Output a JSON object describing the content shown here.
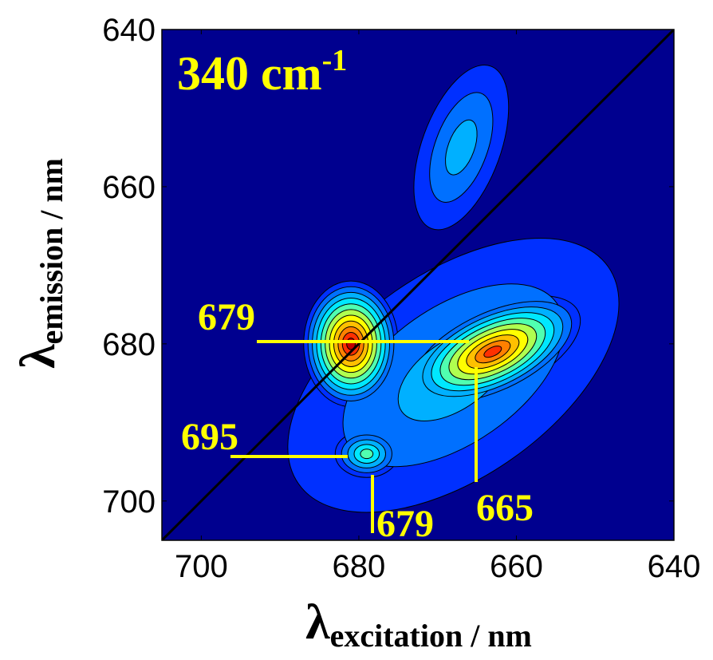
{
  "chart_data": {
    "type": "contour",
    "title": {
      "text": "340 cm",
      "sup": "-1"
    },
    "x_label": {
      "main": "λ",
      "sub": "excitation / nm"
    },
    "y_label": {
      "main": "λ",
      "sub": "emission / nm"
    },
    "xlim": [
      705,
      640
    ],
    "ylim": [
      640,
      705
    ],
    "xticks": [
      700,
      680,
      660,
      640
    ],
    "yticks": [
      640,
      660,
      680,
      700
    ],
    "background": "#00008f",
    "level_colors": [
      "#0030ff",
      "#0070ff",
      "#00b0ff",
      "#00e8ff",
      "#50ffb0",
      "#b0ff50",
      "#ffff00",
      "#ffc000",
      "#ff8000",
      "#ff3000",
      "#c00000"
    ],
    "peaks": [
      {
        "x": 668,
        "y": 684,
        "levels": 3,
        "sx": 24,
        "sy": 13,
        "angle": -35
      },
      {
        "x": 663,
        "y": 681,
        "levels": 10,
        "sx": 12,
        "sy": 5.5,
        "angle": -25
      },
      {
        "x": 681,
        "y": 680,
        "levels": 11,
        "sx": 6,
        "sy": 8,
        "angle": 0
      },
      {
        "x": 667,
        "y": 655,
        "levels": 3,
        "sx": 5,
        "sy": 11,
        "angle": 20
      },
      {
        "x": 679,
        "y": 694,
        "levels": 5,
        "sx": 4,
        "sy": 3,
        "angle": 0
      }
    ],
    "annotations": [
      "679",
      "695",
      "679",
      "665"
    ]
  }
}
